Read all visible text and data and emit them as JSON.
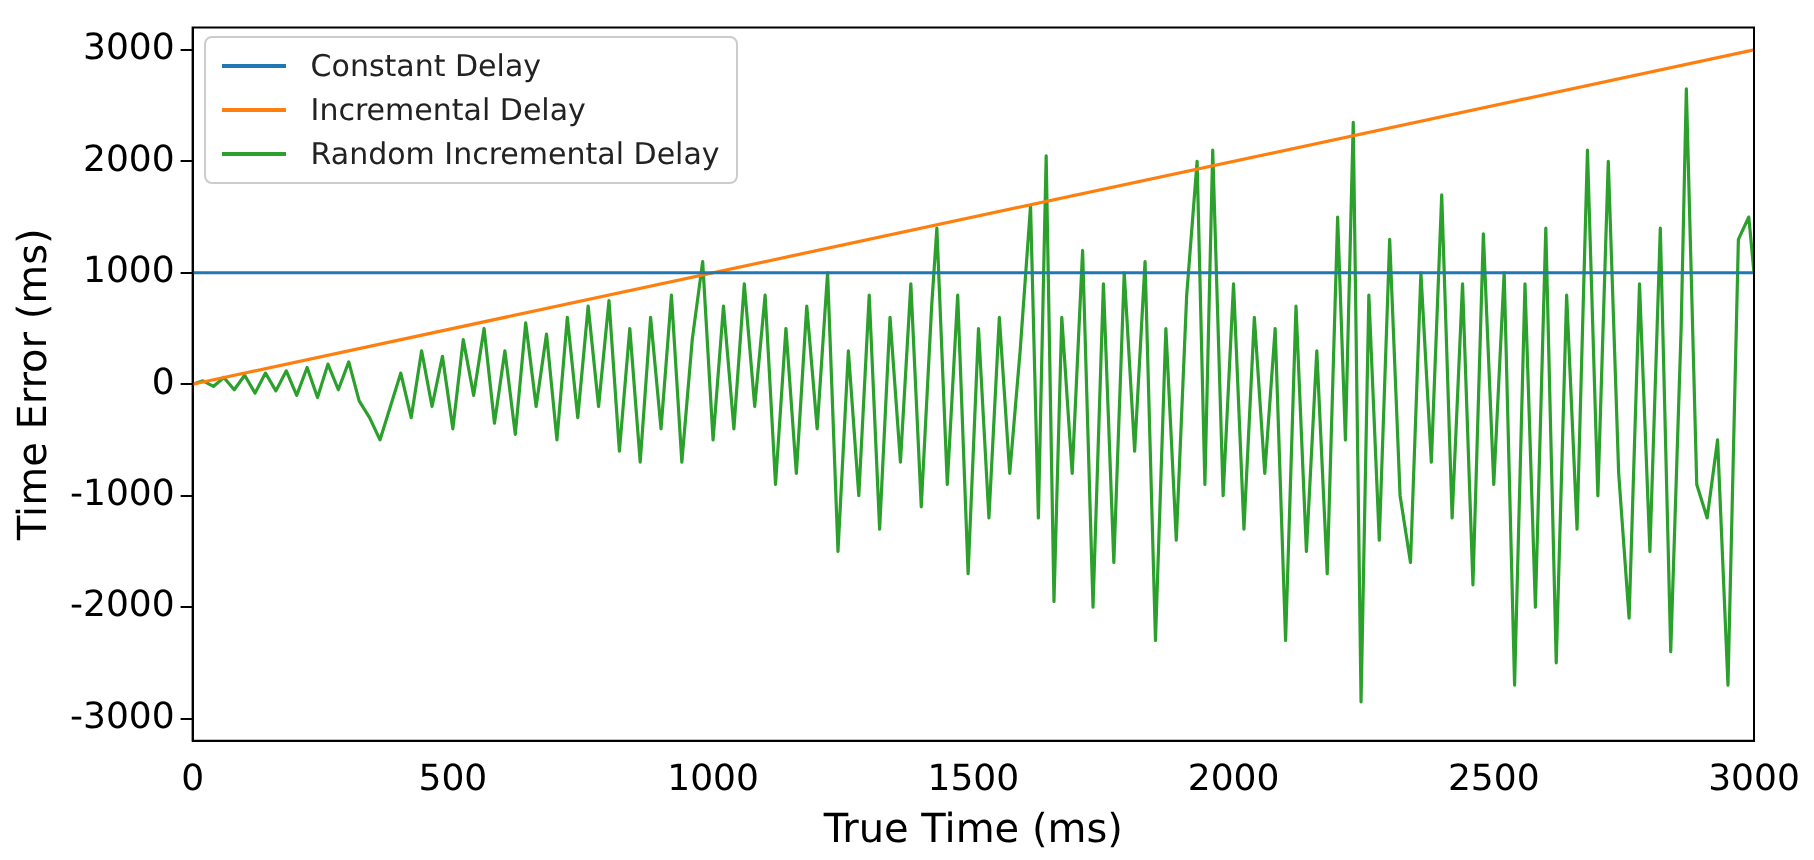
{
  "chart_data": {
    "type": "line",
    "xlabel": "True Time (ms)",
    "ylabel": "Time Error (ms)",
    "xlim": [
      0,
      3000
    ],
    "ylim": [
      -3200,
      3200
    ],
    "xticks": [
      0,
      500,
      1000,
      1500,
      2000,
      2500,
      3000
    ],
    "yticks": [
      -3000,
      -2000,
      -1000,
      0,
      1000,
      2000,
      3000
    ],
    "grid": false,
    "legend": "top left",
    "marker": "none",
    "line_style": "solid",
    "series": [
      {
        "name": "Constant Delay",
        "color": "#1f77b4",
        "x": [
          0,
          3000
        ],
        "values": [
          1000,
          1000
        ]
      },
      {
        "name": "Incremental Delay",
        "color": "#ff7f0e",
        "x": [
          0,
          3000
        ],
        "values": [
          0,
          3000
        ]
      },
      {
        "name": "Random Incremental Delay",
        "color": "#2ca02c",
        "x": [
          0,
          20,
          40,
          60,
          80,
          100,
          120,
          140,
          160,
          180,
          200,
          220,
          240,
          260,
          280,
          300,
          320,
          340,
          360,
          380,
          400,
          420,
          440,
          460,
          480,
          500,
          520,
          540,
          560,
          580,
          600,
          620,
          640,
          660,
          680,
          700,
          720,
          740,
          760,
          780,
          800,
          820,
          840,
          860,
          880,
          900,
          920,
          940,
          960,
          980,
          1000,
          1020,
          1040,
          1060,
          1080,
          1100,
          1120,
          1140,
          1160,
          1180,
          1200,
          1220,
          1240,
          1260,
          1280,
          1300,
          1320,
          1340,
          1360,
          1380,
          1400,
          1420,
          1430,
          1450,
          1470,
          1490,
          1510,
          1530,
          1550,
          1570,
          1590,
          1610,
          1625,
          1640,
          1655,
          1670,
          1690,
          1710,
          1730,
          1750,
          1770,
          1790,
          1810,
          1830,
          1850,
          1870,
          1890,
          1910,
          1930,
          1945,
          1960,
          1980,
          2000,
          2020,
          2040,
          2060,
          2080,
          2100,
          2120,
          2140,
          2160,
          2180,
          2200,
          2215,
          2230,
          2245,
          2260,
          2280,
          2300,
          2320,
          2340,
          2360,
          2380,
          2400,
          2420,
          2440,
          2460,
          2480,
          2500,
          2520,
          2540,
          2560,
          2580,
          2600,
          2620,
          2640,
          2660,
          2680,
          2700,
          2720,
          2740,
          2760,
          2780,
          2800,
          2820,
          2840,
          2860,
          2870,
          2890,
          2910,
          2930,
          2950,
          2970,
          2990,
          3000
        ],
        "values": [
          0,
          30,
          -20,
          60,
          -50,
          80,
          -80,
          100,
          -60,
          120,
          -100,
          150,
          -120,
          180,
          -50,
          200,
          -150,
          -300,
          -500,
          -200,
          100,
          -300,
          300,
          -200,
          250,
          -400,
          400,
          -100,
          500,
          -350,
          300,
          -450,
          550,
          -200,
          450,
          -500,
          600,
          -300,
          700,
          -200,
          750,
          -600,
          500,
          -700,
          600,
          -400,
          800,
          -700,
          400,
          1100,
          -500,
          700,
          -400,
          900,
          -200,
          800,
          -900,
          500,
          -800,
          700,
          -400,
          1000,
          -1500,
          300,
          -1000,
          800,
          -1300,
          600,
          -700,
          900,
          -1100,
          700,
          1400,
          -900,
          800,
          -1700,
          500,
          -1200,
          600,
          -800,
          300,
          1600,
          -1200,
          2050,
          -1950,
          600,
          -800,
          1200,
          -2000,
          900,
          -1600,
          1000,
          -600,
          1100,
          -2300,
          500,
          -1400,
          800,
          2000,
          -900,
          2100,
          -1000,
          900,
          -1300,
          600,
          -800,
          500,
          -2300,
          700,
          -1500,
          300,
          -1700,
          1500,
          -500,
          2350,
          -2850,
          800,
          -1400,
          1300,
          -1000,
          -1600,
          1000,
          -700,
          1700,
          -1200,
          900,
          -1800,
          1350,
          -900,
          1000,
          -2700,
          900,
          -2000,
          1400,
          -2500,
          800,
          -1300,
          2100,
          -1000,
          2000,
          -800,
          -2100,
          900,
          -1500,
          1400,
          -2400,
          500,
          2650,
          -900,
          -1200,
          -500,
          -2700,
          1300,
          1500,
          1000
        ]
      }
    ]
  }
}
